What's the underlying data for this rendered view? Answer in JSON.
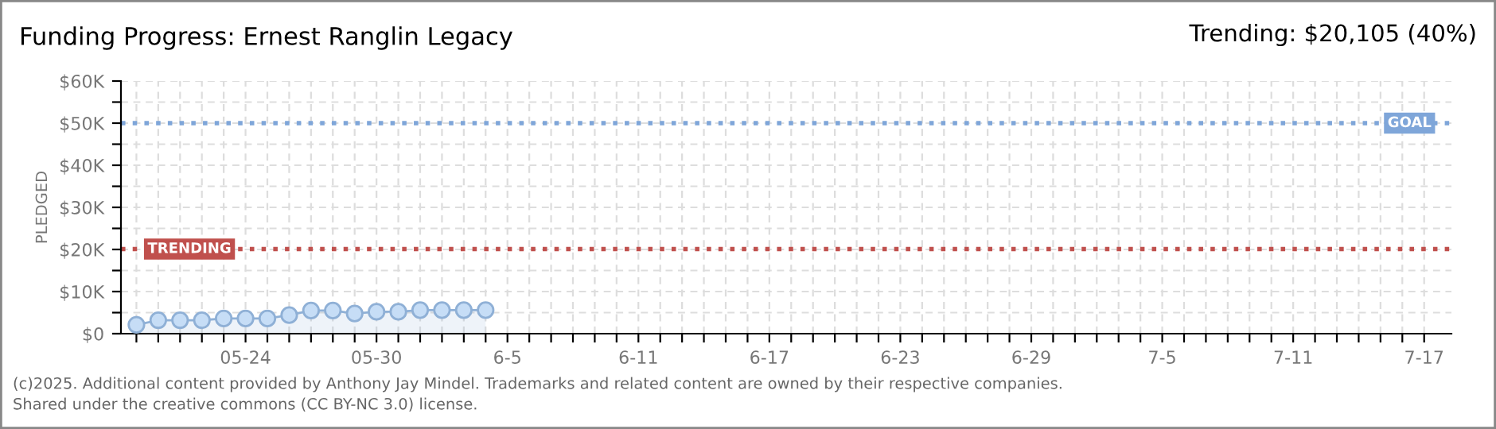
{
  "chart_data": {
    "type": "area",
    "title": "Funding Progress: Ernest Ranglin Legacy",
    "subtitle": "Trending: $20,105 (40%)",
    "ylabel": "PLEDGED",
    "x": [
      "2025-05-19",
      "2025-05-20",
      "2025-05-21",
      "2025-05-22",
      "2025-05-23",
      "2025-05-24",
      "2025-05-25",
      "2025-05-26",
      "2025-05-27",
      "2025-05-28",
      "2025-05-29",
      "2025-05-30",
      "2025-05-31",
      "2025-06-01",
      "2025-06-02",
      "2025-06-03",
      "2025-06-04"
    ],
    "series": [
      {
        "color": "#8fb0d6",
        "values": [
          2100,
          3200,
          3200,
          3200,
          3600,
          3600,
          3600,
          4400,
          5500,
          5500,
          4800,
          5200,
          5200,
          5600,
          5600,
          5600,
          5600
        ]
      }
    ],
    "marker": "circle",
    "xlim": [
      "2025-05-18T07:00",
      "2025-07-18T06:00"
    ],
    "xticks": [
      {
        "value": "2025-05-19",
        "label": null
      },
      {
        "value": "2025-05-20",
        "label": null
      },
      {
        "value": "2025-05-21",
        "label": null
      },
      {
        "value": "2025-05-22",
        "label": null
      },
      {
        "value": "2025-05-23",
        "label": null
      },
      {
        "value": "2025-05-24",
        "label": "05-24"
      },
      {
        "value": "2025-05-25",
        "label": null
      },
      {
        "value": "2025-05-26",
        "label": null
      },
      {
        "value": "2025-05-27",
        "label": null
      },
      {
        "value": "2025-05-28",
        "label": null
      },
      {
        "value": "2025-05-29",
        "label": null
      },
      {
        "value": "2025-05-30",
        "label": "05-30"
      },
      {
        "value": "2025-05-31",
        "label": null
      },
      {
        "value": "2025-06-01",
        "label": null
      },
      {
        "value": "2025-06-02",
        "label": null
      },
      {
        "value": "2025-06-03",
        "label": null
      },
      {
        "value": "2025-06-04",
        "label": null
      },
      {
        "value": "2025-06-05",
        "label": "6-5"
      },
      {
        "value": "2025-06-06",
        "label": null
      },
      {
        "value": "2025-06-07",
        "label": null
      },
      {
        "value": "2025-06-08",
        "label": null
      },
      {
        "value": "2025-06-09",
        "label": null
      },
      {
        "value": "2025-06-10",
        "label": null
      },
      {
        "value": "2025-06-11",
        "label": "6-11"
      },
      {
        "value": "2025-06-12",
        "label": null
      },
      {
        "value": "2025-06-13",
        "label": null
      },
      {
        "value": "2025-06-14",
        "label": null
      },
      {
        "value": "2025-06-15",
        "label": null
      },
      {
        "value": "2025-06-16",
        "label": null
      },
      {
        "value": "2025-06-17",
        "label": "6-17"
      },
      {
        "value": "2025-06-18",
        "label": null
      },
      {
        "value": "2025-06-19",
        "label": null
      },
      {
        "value": "2025-06-20",
        "label": null
      },
      {
        "value": "2025-06-21",
        "label": null
      },
      {
        "value": "2025-06-22",
        "label": null
      },
      {
        "value": "2025-06-23",
        "label": "6-23"
      },
      {
        "value": "2025-06-24",
        "label": null
      },
      {
        "value": "2025-06-25",
        "label": null
      },
      {
        "value": "2025-06-26",
        "label": null
      },
      {
        "value": "2025-06-27",
        "label": null
      },
      {
        "value": "2025-06-28",
        "label": null
      },
      {
        "value": "2025-06-29",
        "label": "6-29"
      },
      {
        "value": "2025-06-30",
        "label": null
      },
      {
        "value": "2025-07-01",
        "label": null
      },
      {
        "value": "2025-07-02",
        "label": null
      },
      {
        "value": "2025-07-03",
        "label": null
      },
      {
        "value": "2025-07-04",
        "label": null
      },
      {
        "value": "2025-07-05",
        "label": "7-5"
      },
      {
        "value": "2025-07-06",
        "label": null
      },
      {
        "value": "2025-07-07",
        "label": null
      },
      {
        "value": "2025-07-08",
        "label": null
      },
      {
        "value": "2025-07-09",
        "label": null
      },
      {
        "value": "2025-07-10",
        "label": null
      },
      {
        "value": "2025-07-11",
        "label": "7-11"
      },
      {
        "value": "2025-07-12",
        "label": null
      },
      {
        "value": "2025-07-13",
        "label": null
      },
      {
        "value": "2025-07-14",
        "label": null
      },
      {
        "value": "2025-07-15",
        "label": null
      },
      {
        "value": "2025-07-16",
        "label": null
      },
      {
        "value": "2025-07-17",
        "label": "7-17"
      }
    ],
    "ylim": [
      0,
      60000
    ],
    "yticks": [
      {
        "value": 0,
        "label": "$0"
      },
      {
        "value": 5000,
        "label": null
      },
      {
        "value": 10000,
        "label": "$10K"
      },
      {
        "value": 15000,
        "label": null
      },
      {
        "value": 20000,
        "label": "$20K"
      },
      {
        "value": 25000,
        "label": null
      },
      {
        "value": 30000,
        "label": "$30K"
      },
      {
        "value": 35000,
        "label": null
      },
      {
        "value": 40000,
        "label": "$40K"
      },
      {
        "value": 45000,
        "label": null
      },
      {
        "value": 50000,
        "label": "$50K"
      },
      {
        "value": 55000,
        "label": null
      },
      {
        "value": 60000,
        "label": "$60K"
      }
    ],
    "ref_lines": [
      {
        "axis": "y",
        "value": 50000,
        "label": "GOAL",
        "color": "#7fa6d9",
        "line_style": "dotted"
      },
      {
        "axis": "y",
        "value": 20105,
        "label": "TRENDING",
        "color": "#c0504d",
        "line_style": "dotted"
      }
    ],
    "grid": true,
    "annotations": [
      "(c)2025. Additional content provided by Anthony Jay Mindel. Trademarks and related content are owned by their respective companies.",
      "Shared under the creative commons (CC BY-NC 3.0) license."
    ]
  }
}
